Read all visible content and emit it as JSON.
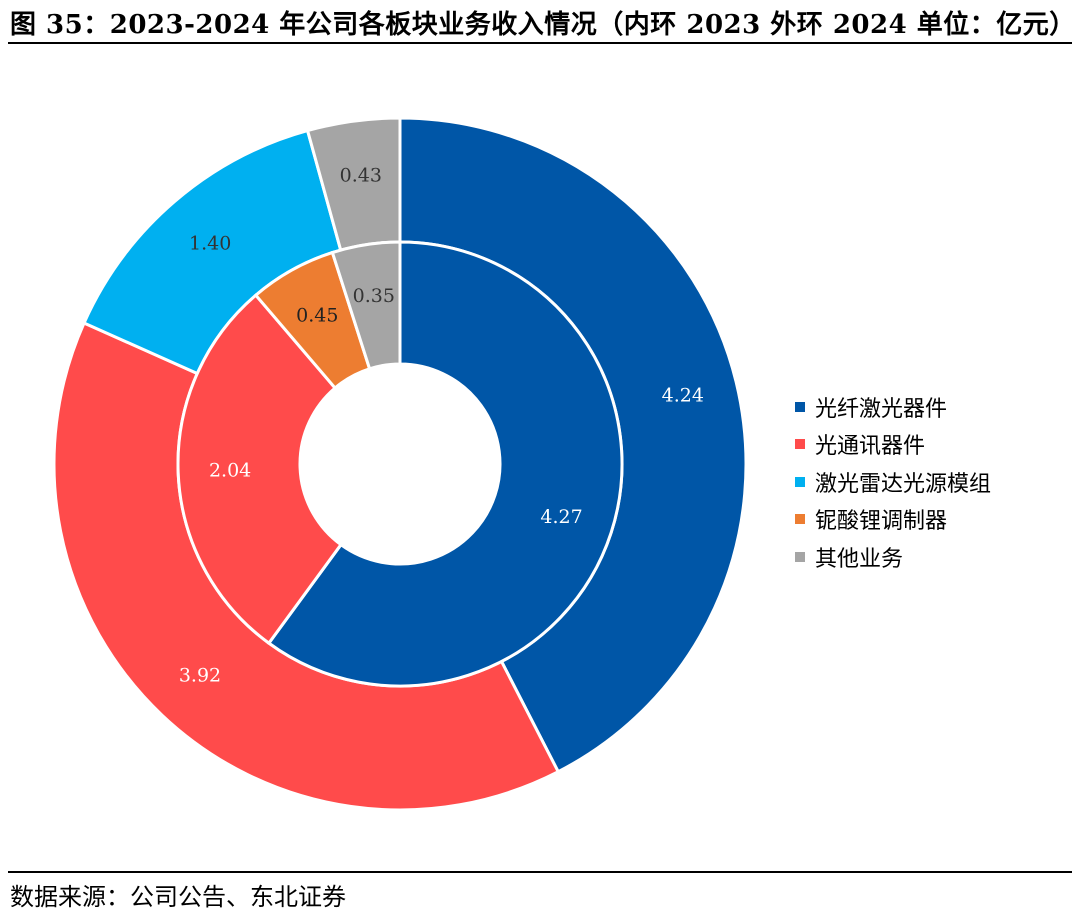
{
  "figure": {
    "title": "图 35：2023-2024 年公司各板块业务收入情况（内环 2023 外环 2024 单位：亿元）",
    "source": "数据来源：公司公告、东北证券"
  },
  "chart_data": {
    "type": "pie",
    "variant": "nested-donut",
    "legend_position": "right",
    "categories": [
      "光纤激光器件",
      "光通讯器件",
      "激光雷达光源模组",
      "铌酸锂调制器",
      "其他业务"
    ],
    "colors": [
      "#0056a7",
      "#ff4b4b",
      "#00b0f0",
      "#ed7d31",
      "#a5a5a5"
    ],
    "series": [
      {
        "ring": "inner",
        "values": [
          4.27,
          2.04,
          0,
          0.45,
          0.35
        ],
        "labels": [
          "4.27",
          "2.04",
          "",
          "0.45",
          "0.35"
        ]
      },
      {
        "ring": "outer",
        "values": [
          4.24,
          3.92,
          1.4,
          0,
          0.43
        ],
        "labels": [
          "4.24",
          "3.92",
          "1.40",
          "",
          "0.43"
        ]
      }
    ]
  }
}
